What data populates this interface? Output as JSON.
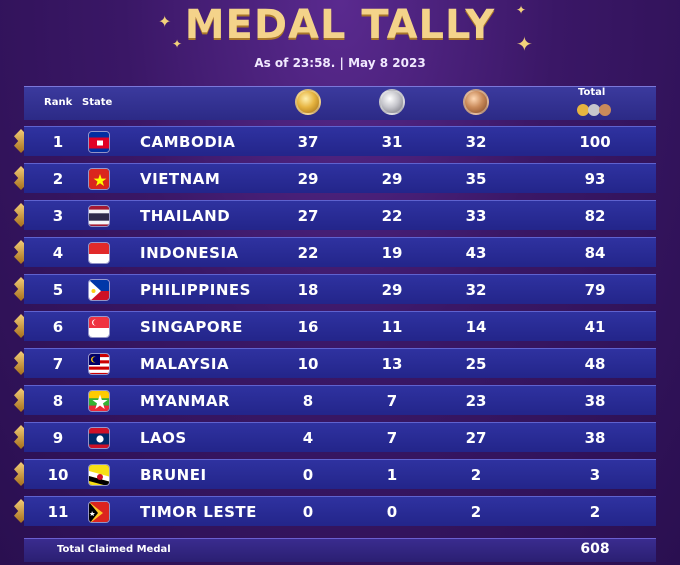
{
  "title": "MEDAL TALLY",
  "subtitle": "As of 23:58. | May 8 2023",
  "header": {
    "rank_label": "Rank",
    "state_label": "State",
    "total_label": "Total"
  },
  "colors": {
    "gold": "#e6b440",
    "silver": "#c6c6cc",
    "bronze": "#c98a5a",
    "title": "#f4d38a"
  },
  "rows": [
    {
      "rank": "1",
      "country": "CAMBODIA",
      "gold": "37",
      "silver": "31",
      "bronze": "32",
      "total": "100"
    },
    {
      "rank": "2",
      "country": "VIETNAM",
      "gold": "29",
      "silver": "29",
      "bronze": "35",
      "total": "93"
    },
    {
      "rank": "3",
      "country": "THAILAND",
      "gold": "27",
      "silver": "22",
      "bronze": "33",
      "total": "82"
    },
    {
      "rank": "4",
      "country": "INDONESIA",
      "gold": "22",
      "silver": "19",
      "bronze": "43",
      "total": "84"
    },
    {
      "rank": "5",
      "country": "PHILIPPINES",
      "gold": "18",
      "silver": "29",
      "bronze": "32",
      "total": "79"
    },
    {
      "rank": "6",
      "country": "SINGAPORE",
      "gold": "16",
      "silver": "11",
      "bronze": "14",
      "total": "41"
    },
    {
      "rank": "7",
      "country": "MALAYSIA",
      "gold": "10",
      "silver": "13",
      "bronze": "25",
      "total": "48"
    },
    {
      "rank": "8",
      "country": "MYANMAR",
      "gold": "8",
      "silver": "7",
      "bronze": "23",
      "total": "38"
    },
    {
      "rank": "9",
      "country": "LAOS",
      "gold": "4",
      "silver": "7",
      "bronze": "27",
      "total": "38"
    },
    {
      "rank": "10",
      "country": "BRUNEI",
      "gold": "0",
      "silver": "1",
      "bronze": "2",
      "total": "3"
    },
    {
      "rank": "11",
      "country": "TIMOR LESTE",
      "gold": "0",
      "silver": "0",
      "bronze": "2",
      "total": "2"
    }
  ],
  "footer": {
    "label": "Total Claimed Medal",
    "value": "608"
  }
}
